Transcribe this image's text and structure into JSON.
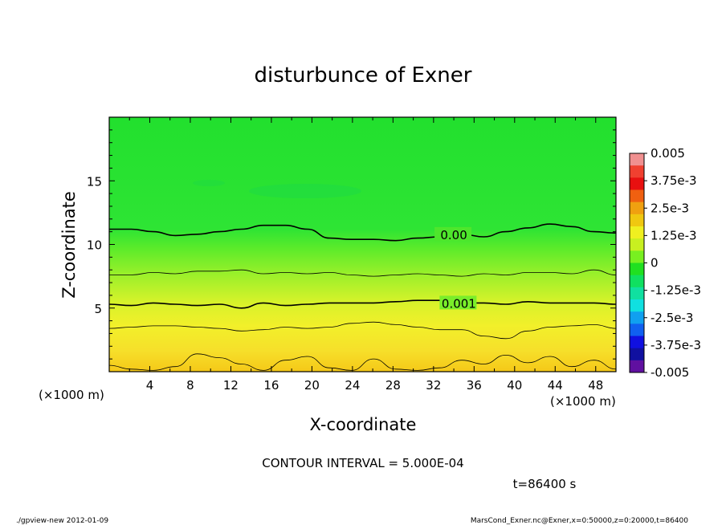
{
  "chart_data": {
    "type": "contour",
    "title": "disturbunce of Exner",
    "xlabel": "X-coordinate",
    "ylabel": "Z-coordinate",
    "x_unit_label": "(×1000 m)",
    "y_unit_label": "(×1000 m)",
    "xlim": [
      0,
      50
    ],
    "ylim": [
      0,
      20
    ],
    "xticks": [
      4,
      8,
      12,
      16,
      20,
      24,
      28,
      32,
      36,
      40,
      44,
      48
    ],
    "yticks": [
      5,
      10,
      15
    ],
    "contour_interval_text": "CONTOUR INTERVAL = 5.000E-04",
    "time_text": "t=86400 s",
    "footer_left": "./gpview-new  2012-01-09",
    "footer_right": "MarsCond_Exner.nc@Exner,x=0:50000,z=0:20000,t=86400",
    "colorbar": {
      "labels": [
        "0.005",
        "3.75e-3",
        "2.5e-3",
        "1.25e-3",
        "0",
        "-1.25e-3",
        "-2.5e-3",
        "-3.75e-3",
        "-0.005"
      ],
      "colors": [
        "#f09090",
        "#f04030",
        "#e81010",
        "#f06010",
        "#f0a010",
        "#f0c810",
        "#f0f020",
        "#c8f020",
        "#78f020",
        "#20e020",
        "#10e060",
        "#10e0a0",
        "#10e0e0",
        "#10a0f0",
        "#1060f0",
        "#1010e0",
        "#1010a0",
        "#6010a0"
      ]
    },
    "contours": [
      {
        "label": "0.00",
        "level": 0,
        "z": [
          11.2,
          11.2,
          11.0,
          10.7,
          10.8,
          11.0,
          11.2,
          11.5,
          11.5,
          11.2,
          10.5,
          10.4,
          10.4,
          10.3,
          10.5,
          10.6,
          10.8,
          10.6,
          11.0,
          11.3,
          11.6,
          11.4,
          11.0,
          10.9
        ]
      },
      {
        "label": "",
        "level": 0.0005,
        "z": [
          7.6,
          7.6,
          7.8,
          7.7,
          7.9,
          7.9,
          8.0,
          7.7,
          7.8,
          7.7,
          7.8,
          7.6,
          7.5,
          7.6,
          7.7,
          7.6,
          7.5,
          7.7,
          7.6,
          7.8,
          7.8,
          7.7,
          8.0,
          7.6
        ]
      },
      {
        "label": "0.001",
        "level": 0.001,
        "z": [
          5.3,
          5.2,
          5.4,
          5.3,
          5.2,
          5.3,
          5.0,
          5.4,
          5.2,
          5.3,
          5.4,
          5.4,
          5.4,
          5.5,
          5.6,
          5.6,
          5.4,
          5.4,
          5.3,
          5.5,
          5.4,
          5.4,
          5.4,
          5.3
        ]
      },
      {
        "label": "",
        "level": 0.0015,
        "z": [
          3.4,
          3.5,
          3.6,
          3.6,
          3.5,
          3.4,
          3.2,
          3.3,
          3.5,
          3.4,
          3.5,
          3.8,
          3.9,
          3.7,
          3.5,
          3.3,
          3.3,
          2.8,
          2.6,
          3.2,
          3.5,
          3.6,
          3.7,
          3.4
        ]
      },
      {
        "label": "",
        "level": 0.002,
        "z": [
          0.5,
          0.2,
          0.1,
          0.4,
          1.4,
          1.1,
          0.6,
          0.1,
          0.9,
          1.2,
          0.3,
          0.1,
          1.0,
          0.2,
          0.1,
          0.3,
          0.9,
          0.6,
          1.3,
          0.7,
          1.2,
          0.4,
          0.9,
          0.2
        ]
      }
    ]
  }
}
